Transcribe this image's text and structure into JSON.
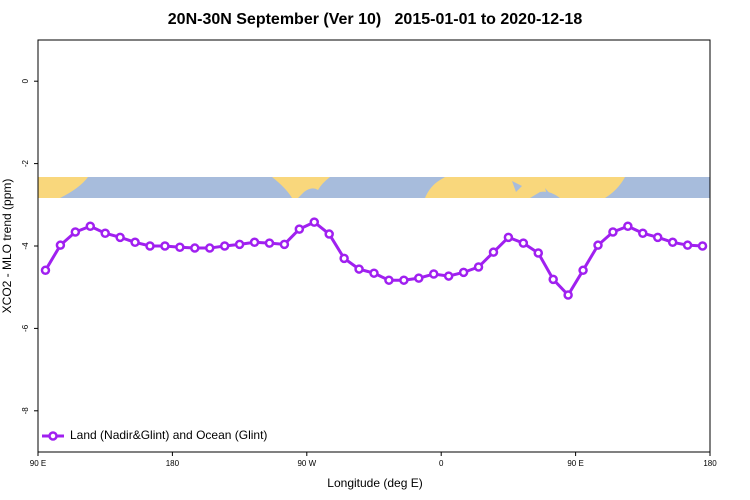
{
  "chart_data": {
    "type": "line",
    "title": "20N-30N September (Ver 10)   2015-01-01 to 2020-12-18",
    "xlabel": "Longitude (deg E)",
    "ylabel": "XCO2 - MLO trend (ppm)",
    "x": [
      95,
      105,
      115,
      125,
      135,
      145,
      155,
      165,
      175,
      185,
      195,
      205,
      215,
      225,
      235,
      245,
      255,
      265,
      275,
      285,
      295,
      305,
      315,
      325,
      335,
      345,
      355,
      365,
      375,
      385,
      395,
      405,
      415,
      425,
      435,
      445,
      455,
      465,
      475,
      485,
      495,
      505,
      515,
      525,
      535
    ],
    "series": [
      {
        "name": "Land (Nadir&Glint) and Ocean (Glint)",
        "color": "#a020f0",
        "values": [
          -4.59,
          -3.98,
          -3.66,
          -3.52,
          -3.69,
          -3.79,
          -3.91,
          -4.0,
          -4.0,
          -4.03,
          -4.05,
          -4.05,
          -4.0,
          -3.96,
          -3.91,
          -3.93,
          -3.96,
          -3.59,
          -3.42,
          -3.71,
          -4.3,
          -4.56,
          -4.66,
          -4.83,
          -4.83,
          -4.78,
          -4.68,
          -4.73,
          -4.64,
          -4.51,
          -4.15,
          -3.79,
          -3.93,
          -4.17,
          -4.81,
          -5.19,
          -4.59,
          -3.98,
          -3.66,
          -3.52,
          -3.69,
          -3.79,
          -3.91,
          -3.98,
          -4.0
        ]
      }
    ],
    "xlim": [
      90,
      540
    ],
    "xticks": [
      {
        "value": 90,
        "label": "90 E"
      },
      180,
      {
        "value": 270,
        "label": "90 W"
      },
      {
        "value": 360,
        "label": "0"
      },
      {
        "value": 450,
        "label": "90 E"
      },
      {
        "value": 540,
        "label": "180"
      }
    ],
    "ylim": [
      -9,
      1
    ],
    "yticks": [
      0,
      -2,
      -4,
      -6,
      -8
    ],
    "legend": "bottom left"
  }
}
